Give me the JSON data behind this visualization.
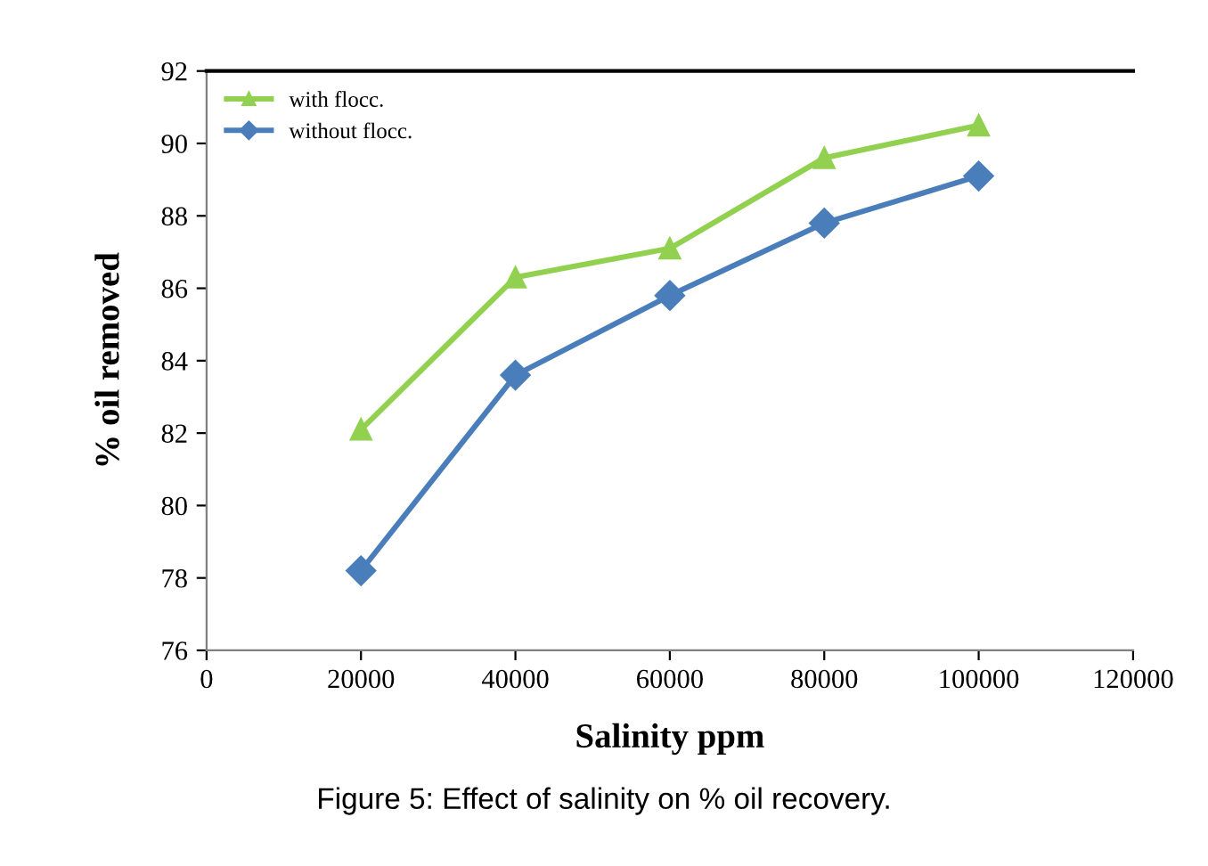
{
  "chart_data": {
    "type": "line",
    "xlabel": "Salinity ppm",
    "ylabel": "% oil removed",
    "x": [
      20000,
      40000,
      60000,
      80000,
      100000
    ],
    "series": [
      {
        "name": "with flocc.",
        "color": "#92d050",
        "marker": "triangle",
        "values": [
          82.1,
          86.3,
          87.1,
          89.6,
          90.5
        ]
      },
      {
        "name": "without flocc.",
        "color": "#4a7ebb",
        "marker": "diamond",
        "values": [
          78.2,
          83.6,
          85.8,
          87.8,
          89.1
        ]
      }
    ],
    "xlim": [
      0,
      120000
    ],
    "xticks": [
      0,
      20000,
      40000,
      60000,
      80000,
      100000,
      120000
    ],
    "ylim": [
      76,
      92
    ],
    "yticks": [
      76,
      78,
      80,
      82,
      84,
      86,
      88,
      90,
      92
    ],
    "grid": false,
    "legend": "top left",
    "line_style": "solid",
    "annotations": [
      "Figure 5: Effect of salinity on % oil recovery."
    ]
  }
}
